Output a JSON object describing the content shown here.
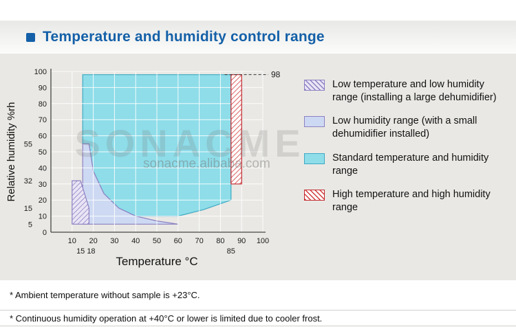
{
  "header": {
    "title": "Temperature and humidity control range"
  },
  "watermark": {
    "brand": "SONACME",
    "url": "sonacme.alibaba.com"
  },
  "legend": {
    "items": [
      {
        "label": "Low temperature and low humidity range (installing a large dehumidifier)",
        "style": "hatch-purple"
      },
      {
        "label": "Low humidity range (with a small dehumidifier installed)",
        "style": "solid-lightblue"
      },
      {
        "label": "Standard temperature and humidity range",
        "style": "solid-cyan"
      },
      {
        "label": "High temperature and high humidity range",
        "style": "hatch-red"
      }
    ]
  },
  "notes": [
    "* Ambient temperature without sample is +23°C.",
    "* Continuous humidity operation at +40°C or lower is limited due to cooler frost."
  ],
  "chart_data": {
    "type": "area",
    "xlabel": "Temperature °C",
    "ylabel": "Relative humidity %rh",
    "xlim": [
      0,
      100
    ],
    "ylim": [
      0,
      100
    ],
    "grid": true,
    "x_ticks": [
      10,
      20,
      30,
      40,
      50,
      60,
      70,
      80,
      90,
      100
    ],
    "x_extra_ticks": [
      15,
      18,
      85
    ],
    "y_ticks": [
      0,
      10,
      20,
      30,
      40,
      50,
      60,
      70,
      80,
      90,
      100
    ],
    "y_extra_ticks": [
      5,
      15,
      32,
      55
    ],
    "max_humidity_annotation": 98,
    "styles": {
      "solid-cyan": {
        "fill": "#8edde9",
        "stroke": "#3fa9c2"
      },
      "solid-lightblue": {
        "fill": "#cdd9f2",
        "stroke": "#8d7fc2"
      },
      "hatch-purple": {
        "fill": "#eae5f5",
        "line": "#8d7fc2",
        "stroke": "#8d7fc2"
      },
      "hatch-red": {
        "fill": "#ffffff",
        "line": "#d23a3a",
        "stroke": "#c3252b"
      }
    },
    "regions": [
      {
        "name": "Low temperature and low humidity range (installing a large dehumidifier)",
        "style": "hatch-purple",
        "layer": 3,
        "points": [
          [
            10,
            5
          ],
          [
            10,
            32
          ],
          [
            14,
            32
          ],
          [
            18,
            15
          ],
          [
            18,
            5
          ]
        ]
      },
      {
        "name": "Low humidity range (with a small dehumidifier installed)",
        "style": "solid-lightblue",
        "layer": 2,
        "points": [
          [
            15,
            55
          ],
          [
            18,
            55
          ],
          [
            20,
            38
          ],
          [
            25,
            24
          ],
          [
            32,
            15
          ],
          [
            40,
            10
          ],
          [
            50,
            7
          ],
          [
            60,
            5
          ],
          [
            15,
            5
          ]
        ]
      },
      {
        "name": "Standard temperature and humidity range",
        "style": "solid-cyan",
        "layer": 1,
        "points": [
          [
            15,
            98
          ],
          [
            85,
            98
          ],
          [
            85,
            20
          ],
          [
            72,
            14
          ],
          [
            60,
            10
          ],
          [
            40,
            10
          ],
          [
            32,
            15
          ],
          [
            25,
            24
          ],
          [
            20,
            38
          ],
          [
            18,
            55
          ],
          [
            15,
            55
          ]
        ]
      },
      {
        "name": "High temperature and high humidity range",
        "style": "hatch-red",
        "layer": 4,
        "points": [
          [
            85,
            30
          ],
          [
            90,
            30
          ],
          [
            90,
            98
          ],
          [
            85,
            98
          ]
        ]
      }
    ]
  }
}
